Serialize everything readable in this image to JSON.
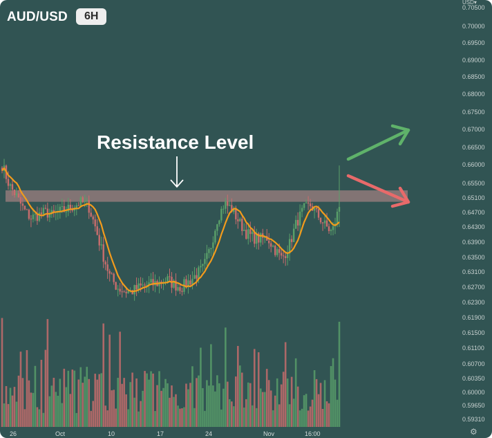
{
  "header": {
    "symbol": "AUD/USD",
    "timeframe": "6H"
  },
  "annotation": {
    "label": "Resistance Level"
  },
  "price_axis": {
    "currency": "USD",
    "currency_caret": "▾",
    "top_partial_label": "0.70500"
  },
  "settings_icon": "gear-icon",
  "colors": {
    "background": "#315453",
    "bull": "#5aa06a",
    "bear": "#c96d6d",
    "moving_average": "#f29b1c",
    "resistance_band": "#9a7d7d",
    "up_arrow": "#5fb26a",
    "down_arrow": "#e86a6a"
  },
  "chart_data": {
    "type": "candlestick",
    "title": "AUD/USD",
    "interval": "6H",
    "y_ticks": [
      "0.70000",
      "0.69500",
      "0.69000",
      "0.68500",
      "0.68000",
      "0.67500",
      "0.67000",
      "0.66500",
      "0.66000",
      "0.65500",
      "0.65100",
      "0.64700",
      "0.64300",
      "0.63900",
      "0.63500",
      "0.63100",
      "0.62700",
      "0.62300",
      "0.61900",
      "0.61500",
      "0.61100",
      "0.60700",
      "0.60350",
      "0.60000",
      "0.59650",
      "0.59310"
    ],
    "x_ticks": [
      "26",
      "Oct",
      "10",
      "17",
      "24",
      "Nov",
      "16:00"
    ],
    "resistance_level": {
      "from": 0.6505,
      "to": 0.6525
    },
    "series": [
      {
        "name": "Price",
        "kind": "candles",
        "close_path": [
          0.66,
          0.6545,
          0.6515,
          0.6478,
          0.6455,
          0.6462,
          0.6471,
          0.6462,
          0.6472,
          0.6478,
          0.6488,
          0.6498,
          0.649,
          0.643,
          0.636,
          0.63,
          0.627,
          0.626,
          0.6258,
          0.6268,
          0.6275,
          0.6278,
          0.6282,
          0.629,
          0.6276,
          0.627,
          0.6284,
          0.6302,
          0.632,
          0.6372,
          0.6452,
          0.6495,
          0.648,
          0.6445,
          0.6415,
          0.6402,
          0.6398,
          0.6402,
          0.6372,
          0.6346,
          0.638,
          0.644,
          0.6478,
          0.649,
          0.6462,
          0.6435,
          0.6415,
          0.6485
        ]
      },
      {
        "name": "Moving average",
        "kind": "line",
        "color": "#f29b1c"
      },
      {
        "name": "Volume",
        "kind": "bars"
      }
    ]
  }
}
